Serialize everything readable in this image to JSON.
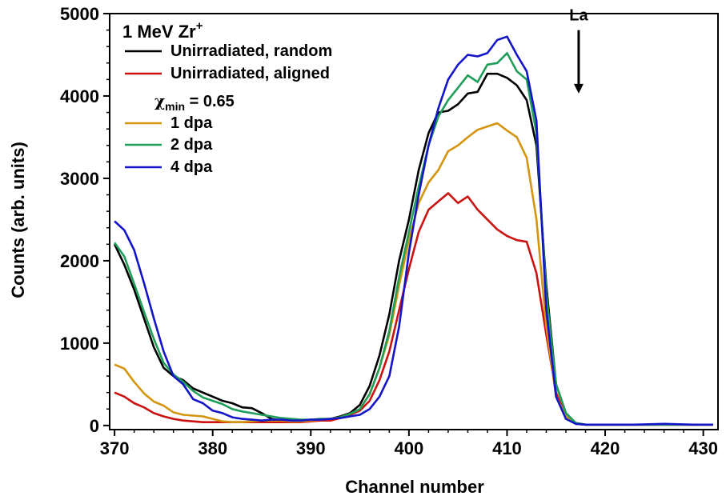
{
  "chart_data": {
    "type": "line",
    "title": "",
    "xlabel": "Channel number",
    "ylabel": "Counts (arb. units)",
    "xlim": [
      369.5,
      431.5
    ],
    "ylim": [
      -50,
      5000
    ],
    "xticks": [
      370,
      380,
      390,
      400,
      410,
      420,
      430
    ],
    "yticks": [
      0,
      1000,
      2000,
      3000,
      4000,
      5000
    ],
    "grid": false,
    "legend": {
      "position": "top-left",
      "title_main": "1 MeV Zr",
      "title_sup": "+",
      "note_symbol": "χ",
      "note_sub": "min",
      "note_value": " = 0.65",
      "note_after_series": 1
    },
    "annotation": {
      "text": "La",
      "x": 417.3,
      "arrow_from": 4800,
      "arrow_to": 4030
    },
    "series": [
      {
        "name": "Unirradiated, random",
        "color": "#000000",
        "x": [
          370,
          371,
          372,
          373,
          374,
          375,
          376,
          377,
          378,
          379,
          380,
          381,
          382,
          383,
          384,
          385,
          386,
          387,
          388,
          389,
          390,
          391,
          392,
          393,
          394,
          395,
          396,
          397,
          398,
          399,
          400,
          401,
          402,
          403,
          404,
          405,
          406,
          407,
          408,
          409,
          410,
          411,
          412,
          413,
          414,
          415,
          416,
          417,
          418,
          420,
          423,
          426,
          429,
          431
        ],
        "y": [
          2200,
          1950,
          1650,
          1300,
          950,
          700,
          600,
          550,
          450,
          400,
          350,
          300,
          270,
          220,
          210,
          150,
          80,
          60,
          50,
          50,
          60,
          70,
          80,
          110,
          150,
          250,
          480,
          850,
          1350,
          2000,
          2500,
          3100,
          3550,
          3800,
          3820,
          3900,
          4030,
          4050,
          4270,
          4270,
          4220,
          4130,
          3950,
          3400,
          1700,
          500,
          150,
          30,
          10,
          10,
          10,
          10,
          10,
          10
        ]
      },
      {
        "name": "Unirradiated, aligned",
        "color": "#cc1111",
        "x": [
          370,
          371,
          372,
          373,
          374,
          375,
          376,
          377,
          378,
          379,
          380,
          381,
          382,
          383,
          384,
          385,
          386,
          387,
          388,
          389,
          390,
          391,
          392,
          393,
          394,
          395,
          396,
          397,
          398,
          399,
          400,
          401,
          402,
          403,
          404,
          405,
          406,
          407,
          408,
          409,
          410,
          411,
          412,
          413,
          414,
          415,
          416,
          417,
          418,
          420,
          423,
          426,
          429,
          431
        ],
        "y": [
          400,
          350,
          270,
          220,
          150,
          110,
          80,
          60,
          50,
          40,
          40,
          40,
          40,
          40,
          40,
          40,
          40,
          40,
          40,
          40,
          50,
          60,
          60,
          90,
          130,
          180,
          300,
          550,
          900,
          1400,
          1900,
          2350,
          2620,
          2720,
          2820,
          2700,
          2780,
          2620,
          2500,
          2380,
          2300,
          2250,
          2230,
          1850,
          1100,
          400,
          100,
          20,
          10,
          10,
          10,
          10,
          10,
          10
        ]
      },
      {
        "name": "1 dpa",
        "color": "#d4950e",
        "x": [
          370,
          371,
          372,
          373,
          374,
          375,
          376,
          377,
          378,
          379,
          380,
          381,
          382,
          383,
          384,
          385,
          386,
          387,
          388,
          389,
          390,
          391,
          392,
          393,
          394,
          395,
          396,
          397,
          398,
          399,
          400,
          401,
          402,
          403,
          404,
          405,
          406,
          407,
          408,
          409,
          410,
          411,
          412,
          413,
          414,
          415,
          416,
          417,
          418,
          420,
          423,
          426,
          429,
          431
        ],
        "y": [
          740,
          690,
          530,
          390,
          290,
          240,
          160,
          130,
          120,
          110,
          80,
          50,
          40,
          40,
          50,
          60,
          60,
          60,
          50,
          50,
          60,
          70,
          80,
          100,
          140,
          200,
          380,
          700,
          1100,
          1700,
          2250,
          2700,
          2950,
          3100,
          3330,
          3400,
          3500,
          3590,
          3630,
          3670,
          3580,
          3500,
          3250,
          2500,
          1200,
          350,
          110,
          20,
          10,
          10,
          10,
          10,
          10,
          10
        ]
      },
      {
        "name": "2 dpa",
        "color": "#1f9e5a",
        "x": [
          370,
          371,
          372,
          373,
          374,
          375,
          376,
          377,
          378,
          379,
          380,
          381,
          382,
          383,
          384,
          385,
          386,
          387,
          388,
          389,
          390,
          391,
          392,
          393,
          394,
          395,
          396,
          397,
          398,
          399,
          400,
          401,
          402,
          403,
          404,
          405,
          406,
          407,
          408,
          409,
          410,
          411,
          412,
          413,
          414,
          415,
          416,
          417,
          418,
          420,
          423,
          426,
          429,
          431
        ],
        "y": [
          2220,
          2050,
          1720,
          1380,
          1050,
          760,
          620,
          530,
          420,
          340,
          300,
          260,
          200,
          170,
          150,
          130,
          110,
          90,
          80,
          70,
          70,
          80,
          80,
          100,
          140,
          200,
          380,
          700,
          1150,
          1800,
          2350,
          2900,
          3400,
          3750,
          3950,
          4100,
          4250,
          4170,
          4380,
          4400,
          4520,
          4300,
          4200,
          3550,
          1600,
          500,
          150,
          30,
          10,
          10,
          10,
          10,
          10,
          10
        ]
      },
      {
        "name": "4 dpa",
        "color": "#1414c8",
        "x": [
          370,
          371,
          372,
          373,
          374,
          375,
          376,
          377,
          378,
          379,
          380,
          381,
          382,
          383,
          384,
          385,
          386,
          387,
          388,
          389,
          390,
          391,
          392,
          393,
          394,
          395,
          396,
          397,
          398,
          399,
          400,
          401,
          402,
          403,
          404,
          405,
          406,
          407,
          408,
          409,
          410,
          411,
          412,
          413,
          414,
          415,
          416,
          417,
          418,
          420,
          423,
          426,
          429,
          431
        ],
        "y": [
          2480,
          2370,
          2130,
          1730,
          1300,
          900,
          600,
          500,
          320,
          270,
          180,
          150,
          100,
          80,
          70,
          60,
          70,
          70,
          60,
          60,
          70,
          70,
          80,
          90,
          110,
          130,
          200,
          350,
          600,
          1200,
          2100,
          2800,
          3400,
          3850,
          4200,
          4380,
          4500,
          4480,
          4520,
          4680,
          4720,
          4500,
          4300,
          3700,
          1400,
          350,
          80,
          20,
          10,
          10,
          10,
          20,
          10,
          10
        ]
      }
    ]
  }
}
